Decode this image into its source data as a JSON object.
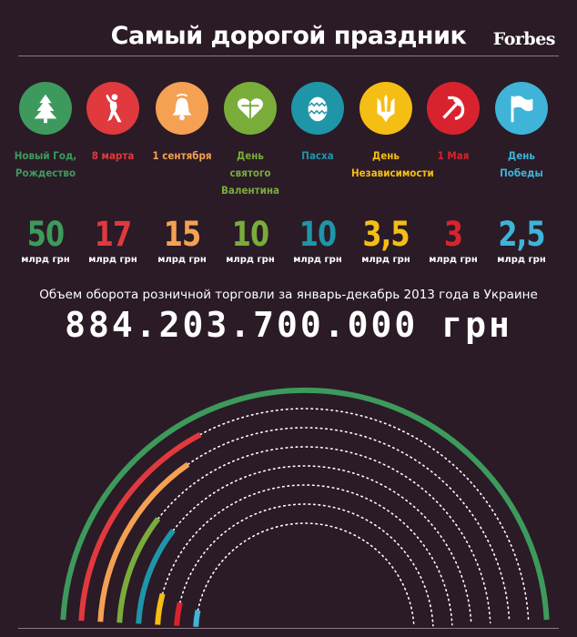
{
  "header": {
    "title": "Самый дорогой праздник",
    "brand": "Forbes"
  },
  "holidays": [
    {
      "name": "Новый Год,\nРождество",
      "value": "50",
      "unit": "млрд грн",
      "color": "#3d9a5c",
      "icon": "christmas-tree-icon"
    },
    {
      "name": "8 марта",
      "value": "17",
      "unit": "млрд грн",
      "color": "#e0393e",
      "icon": "dancing-woman-icon"
    },
    {
      "name": "1 сентября",
      "value": "15",
      "unit": "млрд грн",
      "color": "#f4a153",
      "icon": "school-bell-icon"
    },
    {
      "name": "День\nсвятого\nВалентина",
      "value": "10",
      "unit": "млрд грн",
      "color": "#7aac3a",
      "icon": "heart-gift-icon"
    },
    {
      "name": "Пасха",
      "value": "10",
      "unit": "млрд грн",
      "color": "#1f95a8",
      "icon": "easter-egg-icon"
    },
    {
      "name": "День\nНезависимости",
      "value": "3,5",
      "unit": "млрд грн",
      "color": "#f5be14",
      "icon": "trident-icon"
    },
    {
      "name": "1 Мая",
      "value": "3",
      "unit": "млрд грн",
      "color": "#d8232f",
      "icon": "hammer-sickle-icon"
    },
    {
      "name": "День\nПобеды",
      "value": "2,5",
      "unit": "млрд грн",
      "color": "#3fb3d8",
      "icon": "flag-icon"
    }
  ],
  "total": {
    "caption": "Объем оборота розничной торговли за январь-декабрь 2013 года в Украине",
    "amount": "884.203.700.000",
    "currency": "грн"
  },
  "chart_data": {
    "type": "bar",
    "title": "Самый дорогой праздник",
    "categories": [
      "Новый Год, Рождество",
      "8 марта",
      "1 сентября",
      "День святого Валентина",
      "Пасха",
      "День Независимости",
      "1 Мая",
      "День Победы"
    ],
    "values": [
      50,
      17,
      15,
      10,
      10,
      3.5,
      3,
      2.5
    ],
    "unit": "млрд грн",
    "colors": [
      "#3d9a5c",
      "#e0393e",
      "#f4a153",
      "#7aac3a",
      "#1f95a8",
      "#f5be14",
      "#d8232f",
      "#3fb3d8"
    ],
    "total_reference_value": 884.2037,
    "grid": false,
    "legend": "none"
  }
}
